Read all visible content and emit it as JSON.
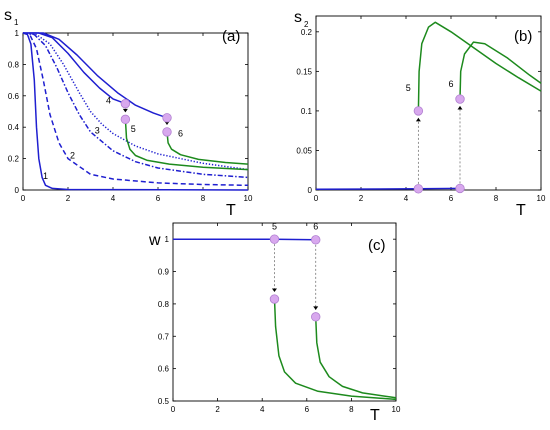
{
  "colors": {
    "blue": "#1f1fd0",
    "green": "#1d8a1d",
    "marker_fill": "#d8a8ee",
    "marker_stroke": "#b07fd0",
    "arrow": "#777777"
  },
  "chart_data": [
    {
      "id": "a",
      "type": "line",
      "panel_label": "(a)",
      "ylabel": "s",
      "ylabel_sub": "1",
      "xlabel": "T",
      "xlim": [
        0,
        10
      ],
      "ylim": [
        0,
        1
      ],
      "xticks": [
        0,
        2,
        4,
        6,
        8,
        10
      ],
      "yticks": [
        0,
        0.2,
        0.4,
        0.6,
        0.8,
        1
      ],
      "ytick_labels": [
        "0",
        "0.2",
        "0.4",
        "0.6",
        "0.8",
        "1"
      ],
      "series": [
        {
          "label": "1",
          "color": "blue",
          "dash": "solid",
          "points": [
            [
              0,
              1
            ],
            [
              0.2,
              0.99
            ],
            [
              0.35,
              0.93
            ],
            [
              0.5,
              0.7
            ],
            [
              0.6,
              0.4
            ],
            [
              0.7,
              0.2
            ],
            [
              0.85,
              0.08
            ],
            [
              1,
              0.03
            ],
            [
              1.3,
              0.01
            ],
            [
              2,
              0.003
            ],
            [
              10,
              0
            ]
          ],
          "label_at": [
            1.0,
            0.07
          ]
        },
        {
          "label": "2",
          "color": "blue",
          "dash": "dashed",
          "points": [
            [
              0,
              1
            ],
            [
              0.3,
              0.99
            ],
            [
              0.6,
              0.9
            ],
            [
              0.9,
              0.7
            ],
            [
              1.2,
              0.48
            ],
            [
              1.6,
              0.3
            ],
            [
              2,
              0.2
            ],
            [
              3,
              0.1
            ],
            [
              4,
              0.07
            ],
            [
              6,
              0.045
            ],
            [
              8,
              0.035
            ],
            [
              10,
              0.03
            ]
          ],
          "label_at": [
            2.2,
            0.2
          ]
        },
        {
          "label": "3",
          "color": "blue",
          "dash": "dashdot",
          "points": [
            [
              0,
              1
            ],
            [
              0.5,
              0.99
            ],
            [
              1,
              0.92
            ],
            [
              1.5,
              0.78
            ],
            [
              2,
              0.62
            ],
            [
              2.5,
              0.48
            ],
            [
              3,
              0.37
            ],
            [
              4,
              0.25
            ],
            [
              5,
              0.18
            ],
            [
              6,
              0.14
            ],
            [
              8,
              0.1
            ],
            [
              10,
              0.08
            ]
          ],
          "label_at": [
            3.3,
            0.36
          ]
        },
        {
          "label": "4",
          "color": "blue",
          "dash": "dotted",
          "points": [
            [
              0,
              1
            ],
            [
              0.6,
              0.99
            ],
            [
              1.2,
              0.93
            ],
            [
              1.8,
              0.8
            ],
            [
              2.5,
              0.62
            ],
            [
              3,
              0.5
            ],
            [
              3.5,
              0.42
            ],
            [
              4,
              0.36
            ],
            [
              5,
              0.28
            ],
            [
              6,
              0.23
            ],
            [
              8,
              0.17
            ],
            [
              10,
              0.13
            ]
          ],
          "label_at": [
            3.8,
            0.55
          ]
        },
        {
          "label": "",
          "color": "blue",
          "dash": "solid",
          "points": [
            [
              0,
              1
            ],
            [
              0.7,
              1
            ],
            [
              1.3,
              0.97
            ],
            [
              2,
              0.87
            ],
            [
              2.7,
              0.75
            ],
            [
              3.4,
              0.65
            ],
            [
              4,
              0.58
            ],
            [
              4.55,
              0.55
            ]
          ]
        },
        {
          "label": "",
          "color": "blue",
          "dash": "solid",
          "points": [
            [
              0,
              1
            ],
            [
              0.9,
              1
            ],
            [
              1.6,
              0.96
            ],
            [
              2.4,
              0.86
            ],
            [
              3.3,
              0.73
            ],
            [
              4.2,
              0.62
            ],
            [
              5,
              0.54
            ],
            [
              5.8,
              0.49
            ],
            [
              6.4,
              0.46
            ]
          ]
        },
        {
          "label": "5",
          "color": "green",
          "dash": "solid",
          "points": [
            [
              4.55,
              0.45
            ],
            [
              4.6,
              0.33
            ],
            [
              4.75,
              0.26
            ],
            [
              5,
              0.22
            ],
            [
              5.5,
              0.19
            ],
            [
              6.5,
              0.165
            ],
            [
              8,
              0.145
            ],
            [
              10,
              0.13
            ]
          ],
          "label_at": [
            4.9,
            0.37
          ]
        },
        {
          "label": "6",
          "color": "green",
          "dash": "solid",
          "points": [
            [
              6.4,
              0.37
            ],
            [
              6.45,
              0.3
            ],
            [
              6.6,
              0.26
            ],
            [
              7,
              0.225
            ],
            [
              7.8,
              0.195
            ],
            [
              9,
              0.175
            ],
            [
              10,
              0.165
            ]
          ],
          "label_at": [
            7.0,
            0.34
          ]
        }
      ],
      "markers": [
        [
          4.55,
          0.55
        ],
        [
          4.55,
          0.45
        ],
        [
          6.4,
          0.46
        ],
        [
          6.4,
          0.37
        ]
      ],
      "arrows": [
        [
          [
            4.55,
            0.55
          ],
          [
            4.55,
            0.45
          ]
        ],
        [
          [
            6.4,
            0.46
          ],
          [
            6.4,
            0.37
          ]
        ]
      ]
    },
    {
      "id": "b",
      "type": "line",
      "panel_label": "(b)",
      "ylabel": "s",
      "ylabel_sub": "2",
      "xlabel": "T",
      "xlim": [
        0,
        10
      ],
      "ylim": [
        0,
        0.22
      ],
      "xticks": [
        0,
        2,
        4,
        6,
        8,
        10
      ],
      "yticks": [
        0,
        0.05,
        0.1,
        0.15,
        0.2
      ],
      "ytick_labels": [
        "0",
        "0.05",
        "0.1",
        "0.15",
        "0.2"
      ],
      "series": [
        {
          "label": "",
          "color": "blue",
          "dash": "solid",
          "points": [
            [
              0,
              0.001
            ],
            [
              4.55,
              0.0015
            ],
            [
              6.4,
              0.002
            ],
            [
              6.5,
              0.002
            ]
          ]
        },
        {
          "label": "5",
          "color": "green",
          "dash": "solid",
          "points": [
            [
              4.55,
              0.1
            ],
            [
              4.58,
              0.15
            ],
            [
              4.7,
              0.185
            ],
            [
              5,
              0.206
            ],
            [
              5.3,
              0.212
            ],
            [
              6,
              0.2
            ],
            [
              7,
              0.18
            ],
            [
              8,
              0.16
            ],
            [
              9,
              0.142
            ],
            [
              10,
              0.125
            ]
          ],
          "label_at": [
            4.1,
            0.125
          ]
        },
        {
          "label": "6",
          "color": "green",
          "dash": "solid",
          "points": [
            [
              6.4,
              0.115
            ],
            [
              6.43,
              0.15
            ],
            [
              6.6,
              0.172
            ],
            [
              7,
              0.187
            ],
            [
              7.5,
              0.185
            ],
            [
              8.5,
              0.167
            ],
            [
              9.5,
              0.145
            ],
            [
              10,
              0.135
            ]
          ],
          "label_at": [
            6.0,
            0.13
          ]
        }
      ],
      "markers": [
        [
          4.55,
          0.1
        ],
        [
          6.4,
          0.115
        ],
        [
          4.55,
          0.0015
        ],
        [
          6.4,
          0.002
        ]
      ],
      "arrows": [
        [
          [
            4.55,
            0.0015
          ],
          [
            4.55,
            0.1
          ]
        ],
        [
          [
            6.4,
            0.002
          ],
          [
            6.4,
            0.115
          ]
        ]
      ]
    },
    {
      "id": "c",
      "type": "line",
      "panel_label": "(c)",
      "ylabel": "w",
      "ylabel_sub": "",
      "xlabel": "T",
      "xlim": [
        0,
        10
      ],
      "ylim": [
        0.5,
        1.05
      ],
      "xticks": [
        0,
        2,
        4,
        6,
        8,
        10
      ],
      "yticks": [
        0.5,
        0.6,
        0.7,
        0.8,
        0.9,
        1
      ],
      "ytick_labels": [
        "0.5",
        "0.6",
        "0.7",
        "0.8",
        "0.9",
        "1"
      ],
      "series": [
        {
          "label": "",
          "color": "blue",
          "dash": "solid",
          "points": [
            [
              0,
              1
            ],
            [
              4.55,
              1
            ],
            [
              6.4,
              0.998
            ]
          ]
        },
        {
          "label": "5",
          "color": "green",
          "dash": "solid",
          "points": [
            [
              4.55,
              0.815
            ],
            [
              4.6,
              0.73
            ],
            [
              4.75,
              0.64
            ],
            [
              5,
              0.59
            ],
            [
              5.5,
              0.555
            ],
            [
              6.5,
              0.53
            ],
            [
              8,
              0.515
            ],
            [
              10,
              0.505
            ]
          ],
          "label_at": [
            4.55,
            1.03
          ]
        },
        {
          "label": "6",
          "color": "green",
          "dash": "solid",
          "points": [
            [
              6.4,
              0.76
            ],
            [
              6.45,
              0.68
            ],
            [
              6.6,
              0.62
            ],
            [
              7,
              0.575
            ],
            [
              7.6,
              0.545
            ],
            [
              8.5,
              0.525
            ],
            [
              10,
              0.51
            ]
          ],
          "label_at": [
            6.4,
            1.03
          ]
        }
      ],
      "markers": [
        [
          4.55,
          1
        ],
        [
          6.4,
          0.998
        ],
        [
          4.55,
          0.815
        ],
        [
          6.4,
          0.76
        ]
      ],
      "arrows": [
        [
          [
            4.55,
            1
          ],
          [
            4.55,
            0.815
          ]
        ],
        [
          [
            6.4,
            0.998
          ],
          [
            6.4,
            0.76
          ]
        ]
      ]
    }
  ]
}
